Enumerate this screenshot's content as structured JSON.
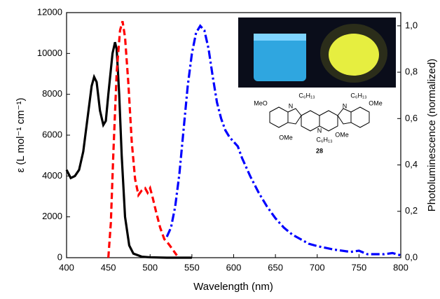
{
  "chart_data": {
    "type": "line",
    "xlabel": "Wavelength (nm)",
    "ylabel": "ε (L mol⁻¹ cm⁻¹)",
    "y2label": "Photoluminescence (normalized)",
    "xlim": [
      400,
      800
    ],
    "xticks": [
      400,
      450,
      500,
      550,
      600,
      650,
      700,
      750,
      800
    ],
    "ylim": [
      0,
      12000
    ],
    "yticks": [
      0,
      2000,
      4000,
      6000,
      8000,
      10000,
      12000
    ],
    "y2lim": [
      0,
      1.057
    ],
    "y2ticks": [
      {
        "value": 0,
        "label": "0,0"
      },
      {
        "value": 0.2,
        "label": "0,2"
      },
      {
        "value": 0.4,
        "label": "0,4"
      },
      {
        "value": 0.6,
        "label": "0,6"
      },
      {
        "value": 0.8,
        "label": "0,8"
      },
      {
        "value": 1.0,
        "label": "1,0"
      }
    ],
    "series": [
      {
        "color": "#000000",
        "style": "solid",
        "x": [
          400,
          405,
          410,
          415,
          420,
          425,
          430,
          433,
          436,
          440,
          444,
          447,
          450,
          455,
          458,
          460,
          463,
          466,
          470,
          475,
          480,
          490,
          500,
          520,
          550
        ],
        "values": [
          4300,
          3900,
          4000,
          4300,
          5200,
          6800,
          8400,
          8850,
          8600,
          7200,
          6500,
          6700,
          8000,
          10000,
          10550,
          10200,
          8000,
          5000,
          2000,
          600,
          200,
          50,
          20,
          0,
          0
        ]
      },
      {
        "color": "#ff0000",
        "style": "dashed",
        "axis": "y2",
        "x": [
          450,
          453,
          456,
          460,
          464,
          467,
          470,
          474,
          478,
          482,
          486,
          490,
          494,
          497,
          500,
          503,
          507,
          512,
          517,
          522,
          528,
          532
        ],
        "values": [
          0,
          0.15,
          0.45,
          0.8,
          0.98,
          1.02,
          0.95,
          0.75,
          0.5,
          0.34,
          0.27,
          0.29,
          0.3,
          0.28,
          0.3,
          0.26,
          0.2,
          0.13,
          0.08,
          0.06,
          0.03,
          0.01
        ]
      },
      {
        "color": "#0000ff",
        "style": "dashdot",
        "axis": "y2",
        "x": [
          520,
          525,
          530,
          535,
          540,
          545,
          550,
          555,
          560,
          565,
          570,
          575,
          580,
          585,
          590,
          595,
          600,
          605,
          610,
          620,
          630,
          640,
          650,
          660,
          670,
          680,
          690,
          700,
          720,
          740,
          750,
          760,
          780,
          790,
          800
        ],
        "values": [
          0.09,
          0.13,
          0.22,
          0.36,
          0.55,
          0.74,
          0.88,
          0.97,
          1.0,
          0.98,
          0.9,
          0.78,
          0.67,
          0.6,
          0.55,
          0.52,
          0.5,
          0.48,
          0.43,
          0.35,
          0.28,
          0.22,
          0.17,
          0.13,
          0.1,
          0.08,
          0.06,
          0.05,
          0.035,
          0.025,
          0.03,
          0.015,
          0.015,
          0.02,
          0.01
        ]
      }
    ],
    "annotations": [
      "MeO",
      "N",
      "C₆H₁₃",
      "N",
      "C₆H₁₃",
      "OMe",
      "OMe",
      "N",
      "C₆H₁₃",
      "OMe",
      "28"
    ]
  }
}
